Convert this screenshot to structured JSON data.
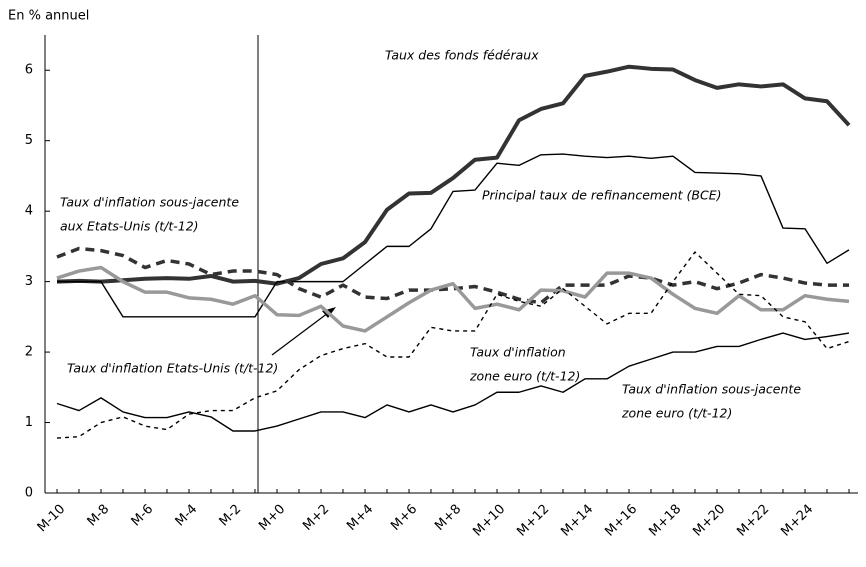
{
  "chart_data": {
    "type": "line",
    "y_label": "En % annuel",
    "categories": [
      "M-10",
      null,
      "M-8",
      null,
      "M-6",
      null,
      "M-4",
      null,
      "M-2",
      null,
      "M+0",
      null,
      "M+2",
      null,
      "M+4",
      null,
      "M+6",
      null,
      "M+8",
      null,
      "M+10",
      null,
      "M+12",
      null,
      "M+14",
      null,
      "M+16",
      null,
      "M+18",
      null,
      "M+20",
      null,
      "M+22",
      null,
      "M+24",
      null,
      null
    ],
    "ylim": [
      0,
      6.5
    ],
    "yticks": [
      0,
      1,
      2,
      3,
      4,
      5,
      6
    ],
    "series": [
      {
        "name": "Taux des fonds fédéraux",
        "color": "#333333",
        "width": 4,
        "dash": "none",
        "values": [
          3.0,
          3.01,
          3.0,
          3.02,
          3.04,
          3.05,
          3.04,
          3.08,
          3.0,
          3.01,
          2.97,
          3.05,
          3.25,
          3.33,
          3.56,
          4.02,
          4.25,
          4.26,
          4.47,
          4.73,
          4.76,
          5.29,
          5.45,
          5.53,
          5.92,
          5.98,
          6.05,
          6.02,
          6.01,
          5.86,
          5.75,
          5.8,
          5.77,
          5.8,
          5.6,
          5.56,
          5.22
        ]
      },
      {
        "name": "Principal taux de refinancement  (BCE)",
        "color": "#000000",
        "width": 1.4,
        "dash": "none",
        "values": [
          3.0,
          3.0,
          3.0,
          2.5,
          2.5,
          2.5,
          2.5,
          2.5,
          2.5,
          2.5,
          3.0,
          3.0,
          3.0,
          3.0,
          3.25,
          3.5,
          3.5,
          3.75,
          4.28,
          4.3,
          4.68,
          4.65,
          4.8,
          4.81,
          4.78,
          4.76,
          4.78,
          4.75,
          4.78,
          4.55,
          4.54,
          4.53,
          4.5,
          3.76,
          3.75,
          3.26,
          3.45
        ]
      },
      {
        "name": "Taux d'inflation sous-jacente aux Etats-Unis (t/t-12)",
        "color": "#333333",
        "width": 3.5,
        "dash": "9 6",
        "values": [
          3.35,
          3.47,
          3.44,
          3.37,
          3.2,
          3.3,
          3.25,
          3.1,
          3.15,
          3.15,
          3.1,
          2.9,
          2.78,
          2.95,
          2.78,
          2.76,
          2.88,
          2.88,
          2.9,
          2.93,
          2.85,
          2.75,
          2.7,
          2.95,
          2.95,
          2.95,
          3.08,
          3.05,
          2.95,
          3.0,
          2.9,
          2.98,
          3.1,
          3.05,
          2.98,
          2.95,
          2.95
        ]
      },
      {
        "name": "Taux d'inflation Etats-Unis (t/t-12)",
        "color": "#999999",
        "width": 3.5,
        "dash": "none",
        "values": [
          3.05,
          3.15,
          3.2,
          3.0,
          2.85,
          2.85,
          2.77,
          2.75,
          2.68,
          2.8,
          2.53,
          2.52,
          2.65,
          2.37,
          2.3,
          2.5,
          2.7,
          2.88,
          2.97,
          2.62,
          2.68,
          2.6,
          2.88,
          2.87,
          2.78,
          3.12,
          3.12,
          3.05,
          2.82,
          2.62,
          2.55,
          2.8,
          2.6,
          2.6,
          2.8,
          2.75,
          2.72
        ]
      },
      {
        "name": "Taux d'inflation zone euro (t/t-12)",
        "color": "#000000",
        "width": 1.4,
        "dash": "4 4",
        "values": [
          0.78,
          0.8,
          1.0,
          1.08,
          0.95,
          0.9,
          1.12,
          1.17,
          1.17,
          1.35,
          1.45,
          1.75,
          1.95,
          2.05,
          2.12,
          1.93,
          1.93,
          2.35,
          2.3,
          2.3,
          2.82,
          2.72,
          2.65,
          2.9,
          2.65,
          2.4,
          2.55,
          2.55,
          3.0,
          3.42,
          3.12,
          2.82,
          2.8,
          2.5,
          2.43,
          2.05,
          2.15
        ]
      },
      {
        "name": "Taux d'inflation sous-jacente zone euro (t/t-12)",
        "color": "#000000",
        "width": 1.4,
        "dash": "none",
        "values": [
          1.27,
          1.17,
          1.35,
          1.15,
          1.07,
          1.07,
          1.15,
          1.08,
          0.88,
          0.88,
          0.95,
          1.05,
          1.15,
          1.15,
          1.07,
          1.25,
          1.15,
          1.25,
          1.15,
          1.25,
          1.43,
          1.43,
          1.52,
          1.43,
          1.62,
          1.62,
          1.8,
          1.9,
          2.0,
          2.0,
          2.08,
          2.08,
          2.18,
          2.27,
          2.18,
          2.22,
          2.27
        ]
      }
    ],
    "annotations": [
      "Taux des fonds fédéraux",
      "Principal taux de refinancement  (BCE)",
      "Taux d'inflation sous-jacente",
      "aux Etats-Unis (t/t-12)",
      "Taux d'inflation Etats-Unis (t/t-12)",
      "Taux d'inflation",
      "zone euro (t/t-12)",
      "Taux d'inflation sous-jacente",
      "zone euro (t/t-12)"
    ]
  }
}
